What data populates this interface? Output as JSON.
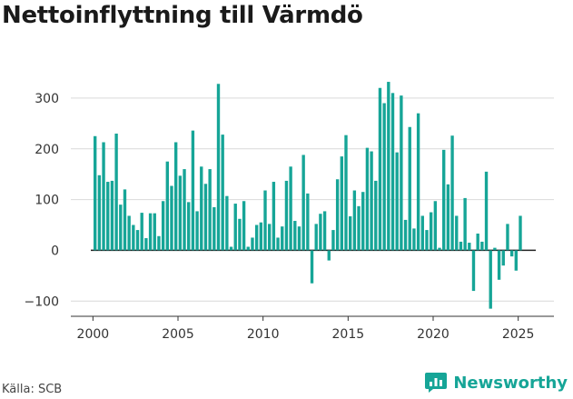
{
  "chart_data": {
    "type": "bar",
    "title": "Nettoinflyttning till Värmdö",
    "source": "Källa: SCB",
    "brand": "Newsworthy",
    "color": "#16a597",
    "baseline_color": "#222222",
    "grid": true,
    "xlim": [
      1998.7,
      2027.1
    ],
    "ylim": [
      -130,
      350
    ],
    "y_ticks": [
      300,
      200,
      100,
      0,
      -100
    ],
    "y_tick_labels": [
      "300",
      "200",
      "100",
      "0",
      "−100"
    ],
    "x_ticks": [
      2000,
      2005,
      2010,
      2015,
      2020,
      2025
    ],
    "x_tick_labels": [
      "2000",
      "2005",
      "2010",
      "2015",
      "2020",
      "2025"
    ],
    "x": [
      2000.125,
      2000.375,
      2000.625,
      2000.875,
      2001.125,
      2001.375,
      2001.625,
      2001.875,
      2002.125,
      2002.375,
      2002.625,
      2002.875,
      2003.125,
      2003.375,
      2003.625,
      2003.875,
      2004.125,
      2004.375,
      2004.625,
      2004.875,
      2005.125,
      2005.375,
      2005.625,
      2005.875,
      2006.125,
      2006.375,
      2006.625,
      2006.875,
      2007.125,
      2007.375,
      2007.625,
      2007.875,
      2008.125,
      2008.375,
      2008.625,
      2008.875,
      2009.125,
      2009.375,
      2009.625,
      2009.875,
      2010.125,
      2010.375,
      2010.625,
      2010.875,
      2011.125,
      2011.375,
      2011.625,
      2011.875,
      2012.125,
      2012.375,
      2012.625,
      2012.875,
      2013.125,
      2013.375,
      2013.625,
      2013.875,
      2014.125,
      2014.375,
      2014.625,
      2014.875,
      2015.125,
      2015.375,
      2015.625,
      2015.875,
      2016.125,
      2016.375,
      2016.625,
      2016.875,
      2017.125,
      2017.375,
      2017.625,
      2017.875,
      2018.125,
      2018.375,
      2018.625,
      2018.875,
      2019.125,
      2019.375,
      2019.625,
      2019.875,
      2020.125,
      2020.375,
      2020.625,
      2020.875,
      2021.125,
      2021.375,
      2021.625,
      2021.875,
      2022.125,
      2022.375,
      2022.625,
      2022.875,
      2023.125,
      2023.375,
      2023.625,
      2023.875,
      2024.125,
      2024.375,
      2024.625,
      2024.875,
      2025.125,
      2025.375
    ],
    "values": [
      225,
      148,
      213,
      135,
      137,
      230,
      90,
      120,
      68,
      50,
      40,
      74,
      24,
      73,
      73,
      28,
      97,
      175,
      127,
      213,
      147,
      160,
      95,
      236,
      77,
      165,
      131,
      160,
      85,
      328,
      228,
      107,
      7,
      92,
      62,
      97,
      7,
      25,
      50,
      55,
      118,
      52,
      135,
      25,
      47,
      137,
      165,
      58,
      47,
      188,
      112,
      -65,
      52,
      72,
      77,
      -20,
      40,
      140,
      185,
      227,
      67,
      118,
      87,
      115,
      202,
      195,
      137,
      320,
      290,
      332,
      310,
      193,
      305,
      60,
      243,
      43,
      270,
      68,
      40,
      75,
      97,
      5,
      198,
      130,
      226,
      68,
      17,
      103,
      15,
      -80,
      33,
      17,
      155,
      -115,
      5,
      -58,
      -30,
      52,
      -12,
      -40,
      68,
      0
    ]
  }
}
